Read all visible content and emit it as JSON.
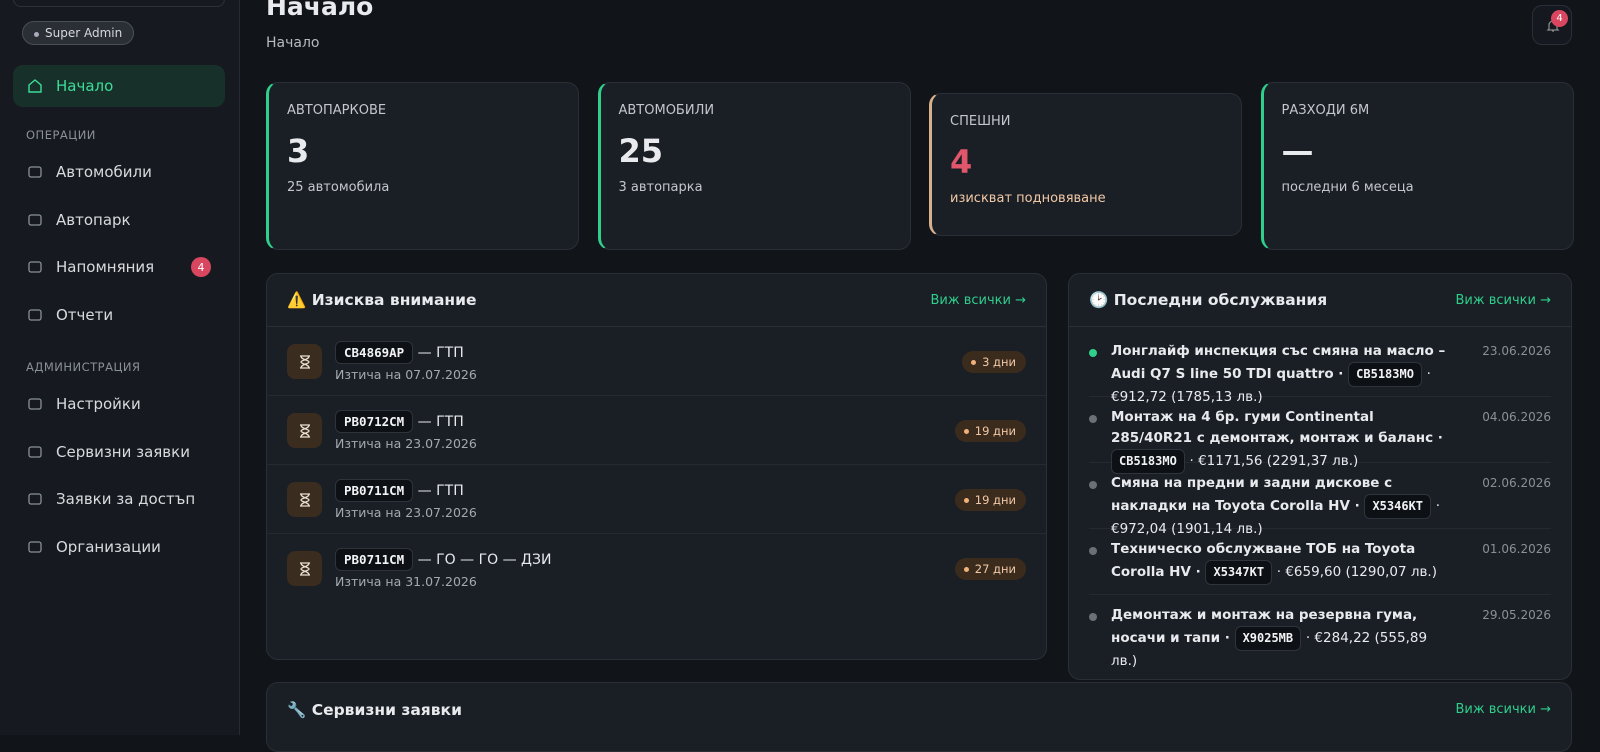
{
  "sidebar": {
    "role": "Super Admin",
    "home": "Начало",
    "sections": [
      {
        "title": "ОПЕРАЦИИ",
        "items": [
          {
            "label": "Автомобили"
          },
          {
            "label": "Автопарк"
          },
          {
            "label": "Напомняния",
            "badge": "4"
          },
          {
            "label": "Отчети"
          }
        ]
      },
      {
        "title": "АДМИНИСТРАЦИЯ",
        "items": [
          {
            "label": "Настройки"
          },
          {
            "label": "Сервизни заявки"
          },
          {
            "label": "Заявки за достъп"
          },
          {
            "label": "Организации"
          }
        ]
      }
    ]
  },
  "header": {
    "title": "Начало",
    "breadcrumb": "Начало",
    "notifications": "4"
  },
  "stats": [
    {
      "label": "АВТОПАРКОВЕ",
      "value": "3",
      "note": "25 автомобила"
    },
    {
      "label": "АВТОМОБИЛИ",
      "value": "25",
      "note": "3 автопарка"
    },
    {
      "label": "СПЕШНИ",
      "value": "4",
      "note": "изискват подновяване"
    },
    {
      "label": "РАЗХОДИ 6М",
      "value": "—",
      "note": "последни 6 месеца"
    }
  ],
  "attention": {
    "title": "⚠️ Изисква внимание",
    "link": "Виж всички →",
    "items": [
      {
        "plate": "СВ4869АР",
        "type": "— ГТП",
        "expires": "Изтича на 07.07.2026",
        "days": "3 дни"
      },
      {
        "plate": "РВ0712СМ",
        "type": "— ГТП",
        "expires": "Изтича на 23.07.2026",
        "days": "19 дни"
      },
      {
        "plate": "РВ0711СМ",
        "type": "— ГТП",
        "expires": "Изтича на 23.07.2026",
        "days": "19 дни"
      },
      {
        "plate": "РВ0711СМ",
        "type": "— ГО — ГО — ДЗИ",
        "expires": "Изтича на 31.07.2026",
        "days": "27 дни"
      }
    ]
  },
  "recent": {
    "title": "🕑 Последни обслужвания",
    "link": "Виж всички →",
    "items": [
      {
        "text": "Лонглайф инспекция със смяна на масло – Audi Q7 S line 50 TDI quattro ·",
        "plate": "СВ5183МО",
        "cost": "· €912,72 (1785,13 лв.)",
        "date": "23.06.2026"
      },
      {
        "text": "Монтаж на 4 бр. гуми Continental 285/40R21 с демонтаж, монтаж и баланс ·",
        "plate": "СВ5183МО",
        "cost": "· €1171,56 (2291,37 лв.)",
        "date": "04.06.2026"
      },
      {
        "text": "Смяна на предни и задни дискове с накладки на Toyota Corolla HV ·",
        "plate": "Х5346КТ",
        "cost": "· €972,04 (1901,14 лв.)",
        "date": "02.06.2026"
      },
      {
        "text": "Техническо обслужване ТОБ на Toyota Corolla HV ·",
        "plate": "Х5347КТ",
        "cost": "· €659,60 (1290,07 лв.)",
        "date": "01.06.2026"
      },
      {
        "text": "Демонтаж и монтаж на резервна гума, носачи и тапи ·",
        "plate": "Х9025МВ",
        "cost": "· €284,22 (555,89 лв.)",
        "date": "29.05.2026"
      }
    ]
  },
  "service": {
    "title": "🔧 Сервизни заявки",
    "link": "Виж всички →"
  }
}
